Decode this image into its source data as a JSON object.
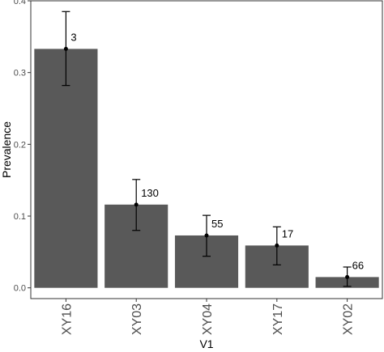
{
  "chart_data": {
    "type": "bar",
    "categories": [
      "XY16",
      "XY03",
      "XY04",
      "XY17",
      "XY02"
    ],
    "values": [
      0.333,
      0.116,
      0.073,
      0.059,
      0.015
    ],
    "error_lower": [
      0.282,
      0.08,
      0.044,
      0.032,
      0.002
    ],
    "error_upper": [
      0.385,
      0.151,
      0.101,
      0.085,
      0.029
    ],
    "data_labels": [
      "3",
      "130",
      "55",
      "17",
      "66"
    ],
    "xlabel": "V1",
    "ylabel": "Prevalence",
    "ylim": [
      -0.015,
      0.4
    ],
    "yticks": [
      0.0,
      0.1,
      0.2,
      0.3,
      0.4
    ],
    "ytick_labels": [
      "0.0",
      "0.1",
      "0.2",
      "0.3",
      "0.4"
    ],
    "grid": false,
    "legend": "none",
    "colors": {
      "bar": "#595959",
      "errorbar": "#000000",
      "point": "#000000",
      "axis": "#333333",
      "panel_border": "#333333",
      "background": "#ffffff"
    }
  }
}
